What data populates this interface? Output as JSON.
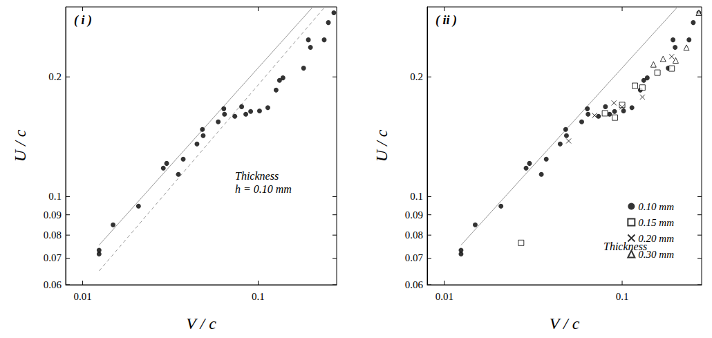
{
  "chart_data": [
    {
      "type": "scatter",
      "title": "( i )",
      "x_label": "V / c",
      "y_label": "U / c",
      "log": true,
      "grid": false,
      "xlim": [
        0.008,
        0.28
      ],
      "xticks": [
        0.01,
        0.1
      ],
      "ylim": [
        0.06,
        0.3
      ],
      "yticks": [
        0.06,
        0.07,
        0.08,
        0.09,
        0.1,
        0.2
      ],
      "annotations": [
        "Thickness",
        "h = 0.10 mm"
      ],
      "series": [
        {
          "type": "line",
          "line_style": "solid",
          "color": "#999999",
          "x": [
            0.0124,
            0.205
          ],
          "values": [
            0.0755,
            0.3
          ]
        },
        {
          "type": "line",
          "line_style": "dashed",
          "color": "#999999",
          "x": [
            0.0124,
            0.24
          ],
          "values": [
            0.065,
            0.3
          ]
        },
        {
          "marker": "circle",
          "color": "#000000",
          "x": [
            0.0124,
            0.0124,
            0.0149,
            0.0208,
            0.0288,
            0.0301,
            0.0351,
            0.0374,
            0.0448,
            0.0481,
            0.0486,
            0.0592,
            0.0637,
            0.0643,
            0.0736,
            0.0805,
            0.085,
            0.0906,
            0.1018,
            0.1135,
            0.1265,
            0.1323,
            0.1384,
            0.1815,
            0.1932,
            0.1986,
            0.2378,
            0.2512,
            0.27
          ],
          "values": [
            0.0733,
            0.0717,
            0.0849,
            0.0946,
            0.1179,
            0.1212,
            0.1137,
            0.1242,
            0.1356,
            0.1475,
            0.1423,
            0.1542,
            0.1663,
            0.1611,
            0.1592,
            0.1683,
            0.1611,
            0.1637,
            0.1642,
            0.1674,
            0.1853,
            0.196,
            0.1989,
            0.2104,
            0.2479,
            0.2373,
            0.2479,
            0.274,
            0.29
          ]
        }
      ]
    },
    {
      "type": "scatter",
      "title": "( ii )",
      "x_label": "V / c",
      "y_label": "U / c",
      "log": true,
      "grid": false,
      "legend": "lower right",
      "xlim": [
        0.008,
        0.28
      ],
      "xticks": [
        0.01,
        0.1
      ],
      "ylim": [
        0.06,
        0.3
      ],
      "yticks": [
        0.06,
        0.07,
        0.08,
        0.09,
        0.1,
        0.2
      ],
      "annotations": [
        "Thickness"
      ],
      "series": [
        {
          "type": "line",
          "line_style": "solid",
          "color": "#999999",
          "x": [
            0.0124,
            0.205
          ],
          "values": [
            0.0755,
            0.3
          ]
        },
        {
          "name": "0.10 mm",
          "marker": "circle",
          "color": "#000000",
          "x": [
            0.0124,
            0.0124,
            0.0149,
            0.0208,
            0.0288,
            0.0301,
            0.0351,
            0.0374,
            0.0448,
            0.0481,
            0.0486,
            0.0592,
            0.0637,
            0.0643,
            0.0736,
            0.0805,
            0.085,
            0.0906,
            0.1018,
            0.1135,
            0.1265,
            0.1323,
            0.1384,
            0.1815,
            0.1932,
            0.1986,
            0.2378,
            0.2512,
            0.27
          ],
          "values": [
            0.0733,
            0.0717,
            0.0849,
            0.0946,
            0.1179,
            0.1212,
            0.1137,
            0.1242,
            0.1356,
            0.1475,
            0.1423,
            0.1542,
            0.1663,
            0.1611,
            0.1592,
            0.1683,
            0.1611,
            0.1637,
            0.1642,
            0.1674,
            0.1853,
            0.196,
            0.1989,
            0.2104,
            0.2479,
            0.2373,
            0.2479,
            0.274,
            0.29
          ]
        },
        {
          "name": "0.15 mm",
          "marker": "square_open",
          "color": "#000000",
          "x": [
            0.027,
            0.08,
            0.091,
            0.1,
            0.118,
            0.13,
            0.158,
            0.19
          ],
          "values": [
            0.0765,
            0.162,
            0.158,
            0.17,
            0.19,
            0.188,
            0.205,
            0.21
          ]
        },
        {
          "name": "0.20 mm",
          "marker": "cross",
          "color": "#000000",
          "x": [
            0.05,
            0.07,
            0.09,
            0.1,
            0.13,
            0.19
          ],
          "values": [
            0.138,
            0.16,
            0.172,
            0.168,
            0.178,
            0.225
          ]
        },
        {
          "name": "0.30 mm",
          "marker": "triangle_open",
          "color": "#000000",
          "x": [
            0.15,
            0.17,
            0.2,
            0.23,
            0.27
          ],
          "values": [
            0.215,
            0.222,
            0.22,
            0.237,
            0.29
          ]
        }
      ]
    }
  ]
}
